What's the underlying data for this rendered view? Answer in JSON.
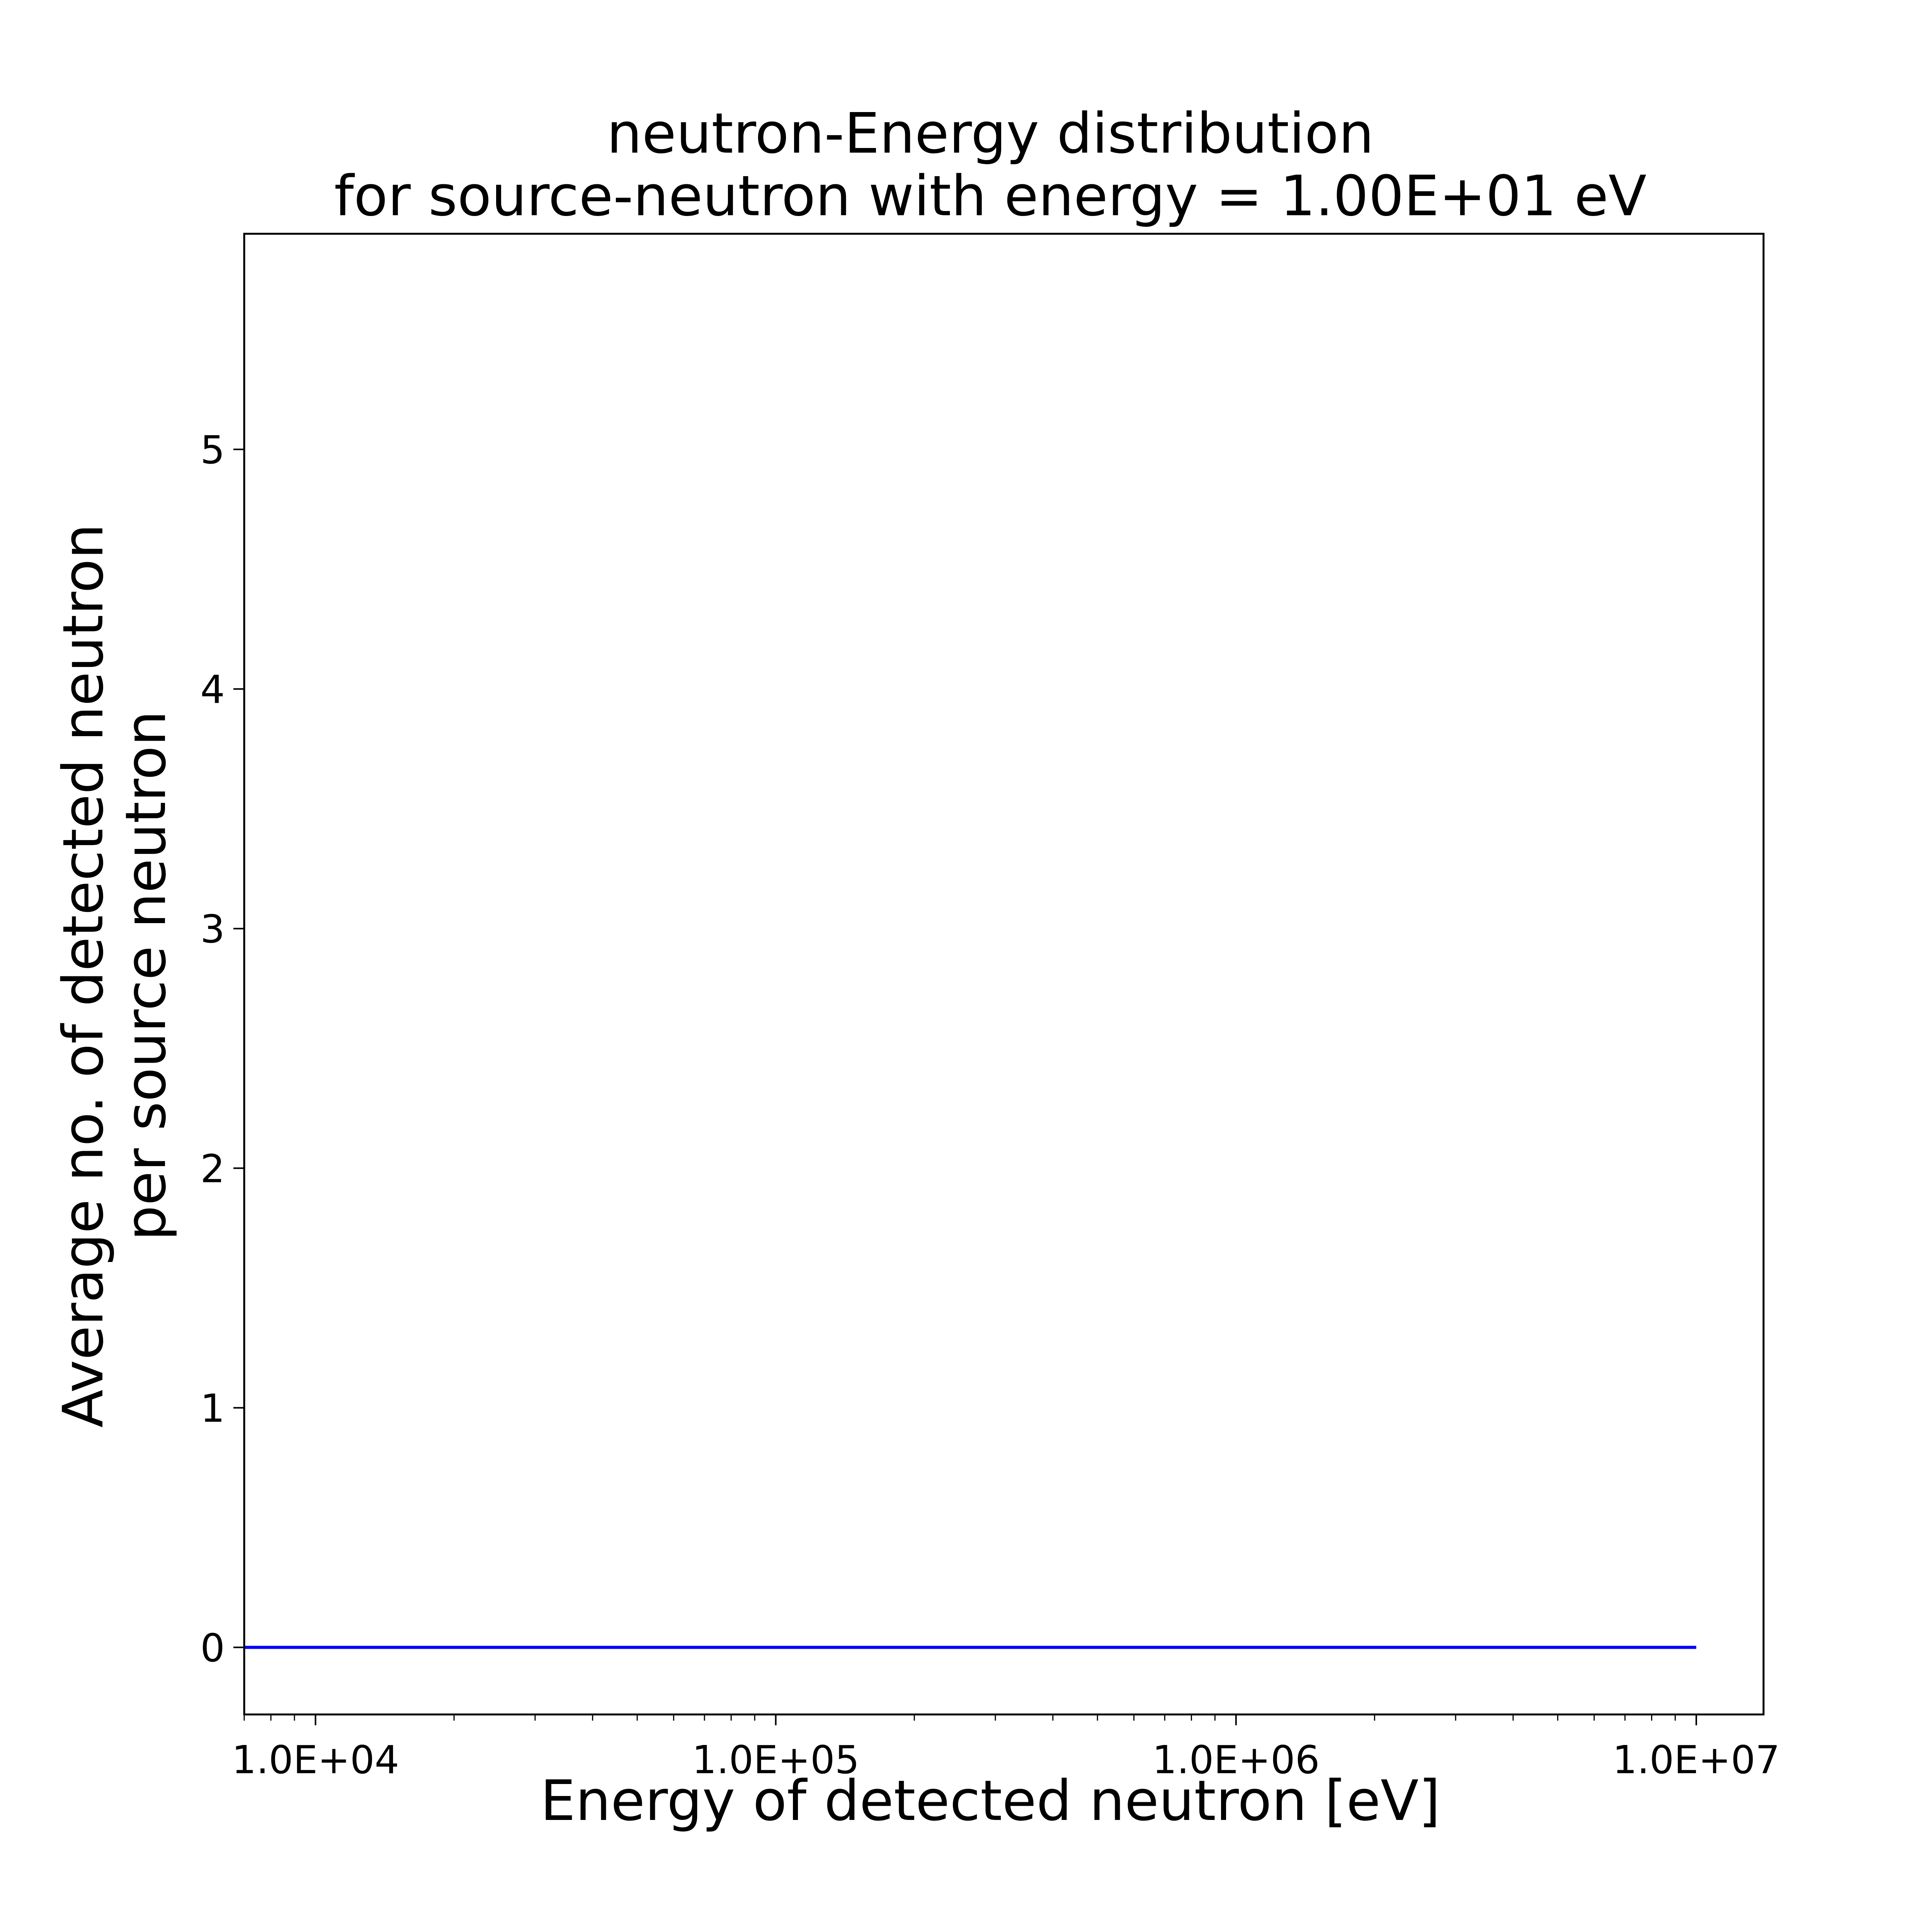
{
  "chart_data": {
    "type": "line",
    "title": [
      "neutron-Energy distribution",
      "for source-neutron with energy = 1.00E+01 eV"
    ],
    "xlabel": "Energy of detected neutron [eV]",
    "ylabel": [
      "Average no. of detected neutron",
      "per source neutron"
    ],
    "xscale": "log",
    "xlim": [
      7000,
      14000000
    ],
    "ylim": [
      -0.28,
      5.9
    ],
    "xticks": [
      {
        "value": 10000,
        "label": "1.0E+04"
      },
      {
        "value": 100000,
        "label": "1.0E+05"
      },
      {
        "value": 1000000,
        "label": "1.0E+06"
      },
      {
        "value": 10000000,
        "label": "1.0E+07"
      }
    ],
    "yticks": [
      {
        "value": 0,
        "label": "0"
      },
      {
        "value": 1,
        "label": "1"
      },
      {
        "value": 2,
        "label": "2"
      },
      {
        "value": 3,
        "label": "3"
      },
      {
        "value": 4,
        "label": "4"
      },
      {
        "value": 5,
        "label": "5"
      }
    ],
    "grid": false,
    "series": [
      {
        "color": "#0000ff",
        "x": [
          7000,
          10000,
          100000,
          1000000,
          10000000
        ],
        "y": [
          0,
          0,
          0,
          0,
          0
        ]
      }
    ]
  }
}
